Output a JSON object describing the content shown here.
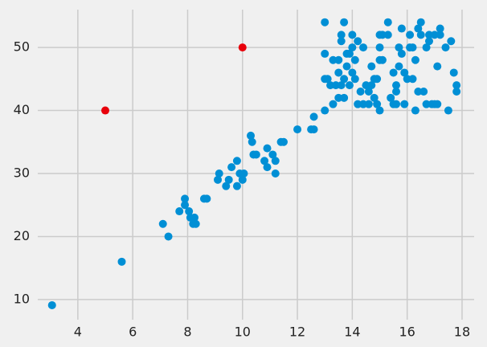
{
  "chart_data": {
    "type": "scatter",
    "xlim": [
      2.54,
      18.44
    ],
    "ylim": [
      6.8,
      56
    ],
    "xticks": [
      4,
      6,
      8,
      10,
      12,
      14,
      16,
      18
    ],
    "yticks": [
      10,
      20,
      30,
      40,
      50
    ],
    "grid": true,
    "series": [
      {
        "color": "#008fd5",
        "x": [
          3.06,
          5.6,
          7.1,
          7.3,
          7.7,
          7.9,
          7.9,
          8.05,
          8.1,
          8.2,
          8.25,
          8.3,
          8.6,
          8.7,
          9.1,
          9.15,
          9.4,
          9.5,
          9.6,
          9.8,
          9.8,
          9.9,
          10.0,
          10.05,
          10.3,
          10.35,
          10.4,
          10.5,
          10.8,
          10.9,
          10.9,
          11.1,
          11.2,
          11.2,
          11.4,
          11.5,
          12.0,
          12.5,
          12.6,
          12.6,
          13.0,
          13.0,
          13.0,
          13.0,
          13.1,
          13.2,
          13.3,
          13.3,
          13.4,
          13.5,
          13.5,
          13.5,
          13.6,
          13.6,
          13.6,
          13.7,
          13.7,
          13.7,
          13.8,
          13.8,
          13.9,
          13.9,
          14.0,
          14.0,
          14.0,
          14.1,
          14.1,
          14.2,
          14.2,
          14.3,
          14.4,
          14.4,
          14.5,
          14.6,
          14.6,
          14.7,
          14.7,
          14.8,
          14.8,
          14.9,
          14.9,
          15.0,
          15.0,
          15.0,
          15.0,
          15.1,
          15.1,
          15.3,
          15.3,
          15.4,
          15.5,
          15.5,
          15.6,
          15.6,
          15.6,
          15.7,
          15.7,
          15.8,
          15.8,
          15.9,
          15.9,
          16.0,
          16.1,
          16.1,
          16.2,
          16.2,
          16.3,
          16.3,
          16.4,
          16.4,
          16.5,
          16.5,
          16.6,
          16.7,
          16.7,
          16.8,
          16.8,
          16.9,
          17.0,
          17.0,
          17.1,
          17.1,
          17.2,
          17.2,
          17.4,
          17.5,
          17.6,
          17.7,
          17.8,
          17.8
        ],
        "values": [
          9.1,
          16,
          22,
          20,
          24,
          25,
          26,
          24,
          23,
          22,
          23,
          22,
          26,
          26,
          29,
          30,
          28,
          29,
          31,
          28,
          32,
          30,
          29,
          30,
          36,
          35,
          33,
          33,
          32,
          34,
          31,
          33,
          30,
          32,
          35,
          35,
          37,
          37,
          37,
          39,
          40,
          45,
          49,
          54,
          45,
          44,
          41,
          48,
          44,
          42,
          46,
          48,
          44,
          51,
          52,
          54,
          42,
          45,
          47,
          49,
          49,
          44,
          46,
          50,
          52,
          45,
          48,
          41,
          51,
          43,
          50,
          41,
          44,
          41,
          43,
          44,
          47,
          42,
          45,
          45,
          41,
          40,
          48,
          50,
          52,
          48,
          52,
          54,
          52,
          42,
          41,
          46,
          43,
          41,
          44,
          47,
          50,
          53,
          49,
          41,
          46,
          45,
          52,
          50,
          45,
          50,
          40,
          48,
          43,
          53,
          54,
          52,
          43,
          50,
          41,
          51,
          52,
          41,
          52,
          41,
          47,
          41,
          52,
          53,
          50,
          40,
          51,
          46,
          44,
          43
        ]
      },
      {
        "color": "#e8000b",
        "x": [
          5,
          10
        ],
        "values": [
          40,
          50
        ]
      }
    ]
  }
}
